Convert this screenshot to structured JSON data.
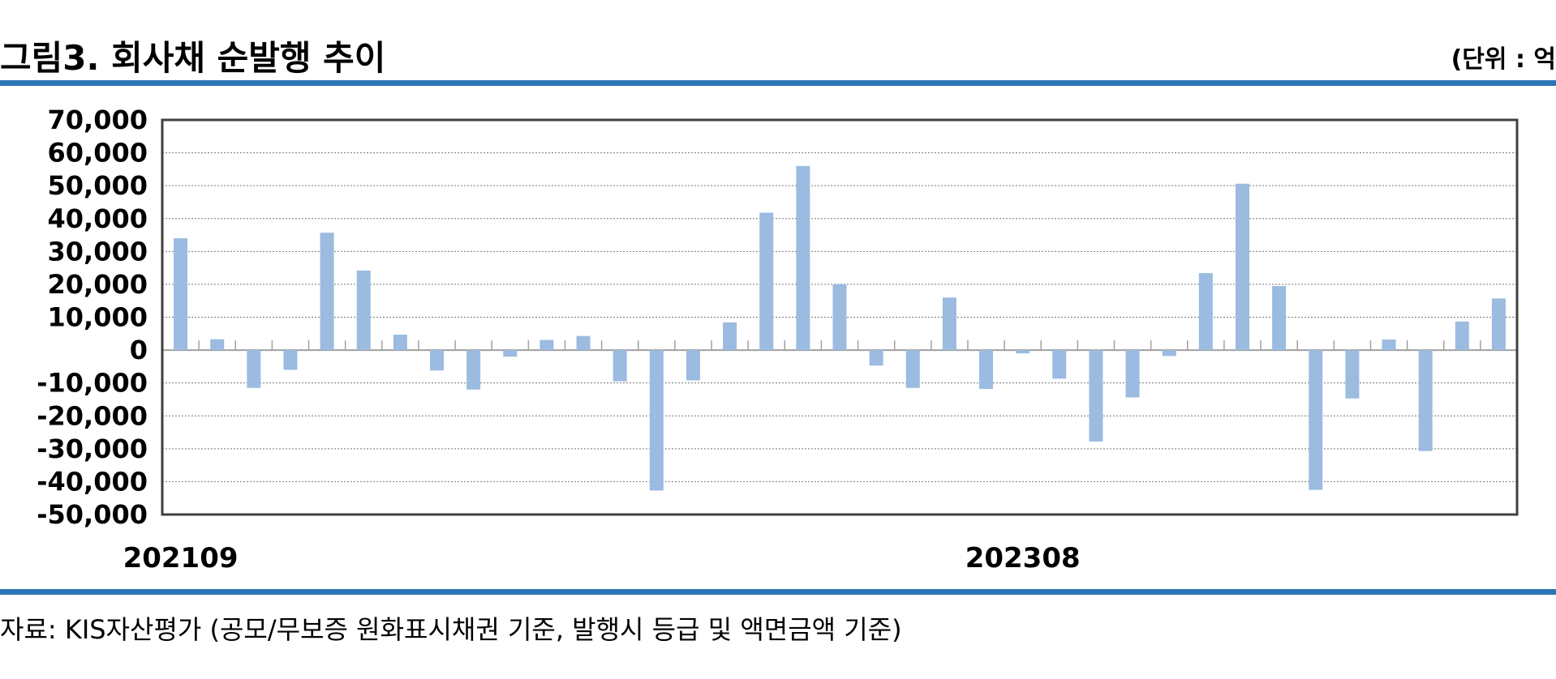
{
  "header": {
    "title": "그림3. 회사채 순발행 추이",
    "unit": "(단위 : 억"
  },
  "footer": {
    "source": "자료: KIS자산평가 (공모/무보증 원화표시채권 기준, 발행시 등급 및 액면금액 기준)"
  },
  "colors": {
    "bar": "#9bbbe0",
    "rule": "#2e75b6",
    "frame": "#404040",
    "grid": "#777777"
  },
  "chart_data": {
    "type": "bar",
    "ylim": [
      -50000,
      70000
    ],
    "yticks": [
      "70,000",
      "60,000",
      "50,000",
      "40,000",
      "30,000",
      "20,000",
      "10,000",
      "0",
      "-10,000",
      "-20,000",
      "-30,000",
      "-40,000",
      "-50,000"
    ],
    "ytick_values": [
      70000,
      60000,
      50000,
      40000,
      30000,
      20000,
      10000,
      0,
      -10000,
      -20000,
      -30000,
      -40000,
      -50000
    ],
    "grid": true,
    "xtick_labels": [
      {
        "label": "202109",
        "index": 0
      },
      {
        "label": "202308",
        "index": 23
      }
    ],
    "values": [
      34000,
      3300,
      -11500,
      -6000,
      35700,
      24200,
      4700,
      -6200,
      -12000,
      -2000,
      3100,
      4300,
      -9500,
      -42700,
      -9200,
      8400,
      41800,
      56000,
      20000,
      -4700,
      -11500,
      16000,
      -11800,
      -1000,
      -8700,
      -27800,
      -14400,
      -1800,
      23400,
      50600,
      19500,
      -42500,
      -14700,
      3200,
      -30700,
      8700,
      15700
    ]
  }
}
